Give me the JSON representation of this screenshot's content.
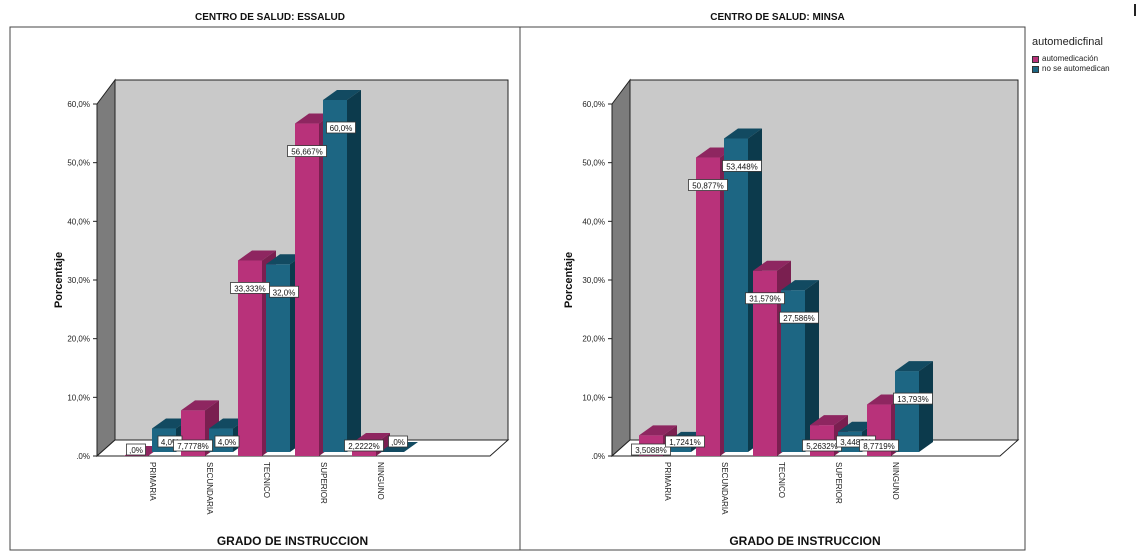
{
  "colors": {
    "autom_front": "#b8327a",
    "autom_side": "#7a1f50",
    "autom_top": "#8e2660",
    "nose_front": "#1d6683",
    "nose_side": "#0c3a4c",
    "nose_top": "#124a61",
    "plot_bg": "#c9c9c9",
    "wall": "#7c7c7c"
  },
  "legend": {
    "title": "automedicfinal",
    "items": [
      {
        "label": "automedicación",
        "color": "#b8327a"
      },
      {
        "label": "no se automedican",
        "color": "#1d6683"
      }
    ]
  },
  "chart_data": [
    {
      "type": "bar",
      "title": "CENTRO DE SALUD: ESSALUD",
      "xlabel": "GRADO DE INSTRUCCION",
      "ylabel": "Porcentaje",
      "ylim": [
        0,
        60
      ],
      "yticks": [
        ".0%",
        "10,0%",
        "20,0%",
        "30,0%",
        "40,0%",
        "50,0%",
        "60,0%"
      ],
      "categories": [
        "PRIMARIA",
        "SECUNDARIA",
        "TECNICO",
        "SUPERIOR",
        "NINGUNO"
      ],
      "series": [
        {
          "name": "automedicación",
          "values": [
            0,
            7.7778,
            33.333,
            56.667,
            2.2222
          ],
          "labels": [
            ",0%",
            "7,7778%",
            "33,333%",
            "56,667%",
            "2,2222%"
          ]
        },
        {
          "name": "no se automedican",
          "values": [
            4.0,
            4.0,
            32.0,
            60.0,
            0
          ],
          "labels": [
            "4,0%",
            "4,0%",
            "32,0%",
            "60,0%",
            ",0%"
          ]
        }
      ]
    },
    {
      "type": "bar",
      "title": "CENTRO DE SALUD: MINSA",
      "xlabel": "GRADO DE INSTRUCCION",
      "ylabel": "Porcentaje",
      "ylim": [
        0,
        60
      ],
      "yticks": [
        ".0%",
        "10,0%",
        "20,0%",
        "30,0%",
        "40,0%",
        "50,0%",
        "60,0%"
      ],
      "categories": [
        "PRIMARIA",
        "SECUNDARIA",
        "TECNICO",
        "SUPERIOR",
        "NINGUNO"
      ],
      "series": [
        {
          "name": "automedicación",
          "values": [
            3.5088,
            50.877,
            31.579,
            5.2632,
            8.7719
          ],
          "labels": [
            "3,5088%",
            "50,877%",
            "31,579%",
            "5,2632%",
            "8,7719%"
          ]
        },
        {
          "name": "no se automedican",
          "values": [
            1.7241,
            53.448,
            27.586,
            3.4483,
            13.793
          ],
          "labels": [
            "1,7241%",
            "53,448%",
            "27,586%",
            "3,4483%",
            "13,793%"
          ]
        }
      ]
    }
  ]
}
